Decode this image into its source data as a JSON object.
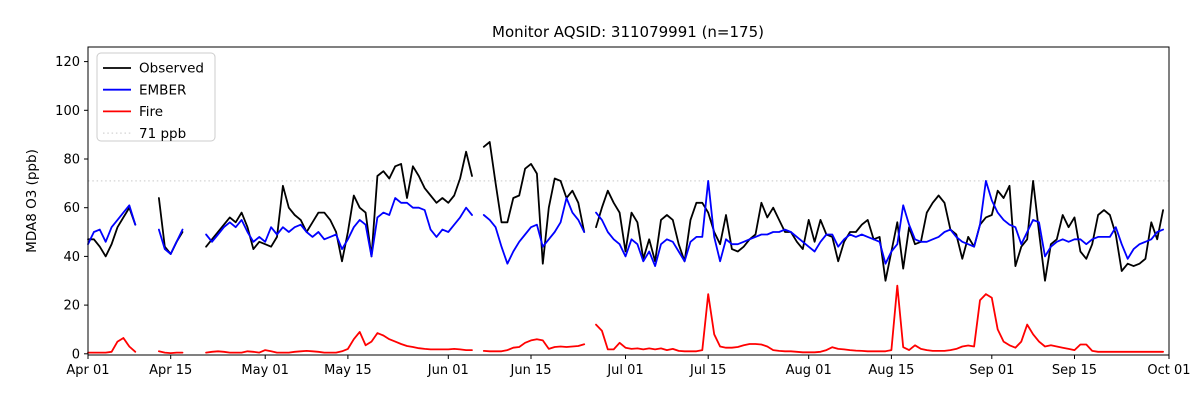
{
  "title": "Monitor AQSID: 311079991 (n=175)",
  "monitor_aqsid": "311079991",
  "n_obs": "175",
  "colors": {
    "observed": "#000000",
    "ember": "#0000ff",
    "fire": "#ff0000",
    "refline": "#d3d3d3",
    "spine": "#000000",
    "background": "#ffffff"
  },
  "legend": [
    {
      "label": "Observed",
      "color": "#000000",
      "style": "solid"
    },
    {
      "label": "EMBER",
      "color": "#0000ff",
      "style": "solid"
    },
    {
      "label": "Fire",
      "color": "#ff0000",
      "style": "solid"
    },
    {
      "label": "71 ppb",
      "color": "#d3d3d3",
      "style": "dotted"
    }
  ],
  "chart_data": {
    "type": "line",
    "title": "Monitor AQSID: 311079991 (n=175)",
    "xlabel": "",
    "ylabel": "MDA8 O3 (ppb)",
    "grid": false,
    "legend_position": "upper left",
    "ylim": [
      -0.5,
      126
    ],
    "y_ticks": [
      0,
      20,
      40,
      60,
      80,
      100,
      120
    ],
    "x_start": "Apr 01",
    "x_end": "Oct 01",
    "days_total": 183,
    "months": [
      {
        "name": "Apr",
        "days": 30
      },
      {
        "name": "May",
        "days": 31
      },
      {
        "name": "Jun",
        "days": 30
      },
      {
        "name": "Jul",
        "days": 31
      },
      {
        "name": "Aug",
        "days": 31
      },
      {
        "name": "Sep",
        "days": 30
      }
    ],
    "x_ticks": [
      {
        "label": "Apr 01",
        "day": 0
      },
      {
        "label": "Apr 15",
        "day": 14
      },
      {
        "label": "May 01",
        "day": 30
      },
      {
        "label": "May 15",
        "day": 44
      },
      {
        "label": "Jun 01",
        "day": 61
      },
      {
        "label": "Jun 15",
        "day": 75
      },
      {
        "label": "Jul 01",
        "day": 91
      },
      {
        "label": "Jul 15",
        "day": 105
      },
      {
        "label": "Aug 01",
        "day": 122
      },
      {
        "label": "Aug 15",
        "day": 136
      },
      {
        "label": "Sep 01",
        "day": 153
      },
      {
        "label": "Sep 15",
        "day": 167
      },
      {
        "label": "Oct 01",
        "day": 183
      }
    ],
    "refline": {
      "value": 71,
      "label": "71 ppb",
      "color": "#d3d3d3",
      "style": "dotted"
    },
    "series": [
      {
        "name": "Observed",
        "color": "#000000",
        "linestyle": "solid",
        "values": [
          47,
          47,
          44,
          40,
          45,
          52,
          56,
          60,
          53,
          null,
          null,
          null,
          64,
          44,
          41,
          46,
          50,
          null,
          null,
          null,
          44,
          47,
          50,
          53,
          56,
          54,
          58,
          52,
          43,
          46,
          45,
          44,
          48,
          69,
          60,
          57,
          55,
          50,
          54,
          58,
          58,
          55,
          50,
          38,
          50,
          65,
          60,
          58,
          40,
          73,
          75,
          72,
          77,
          78,
          64,
          77,
          73,
          68,
          65,
          62,
          64,
          62,
          65,
          72,
          83,
          73,
          null,
          85,
          87,
          70,
          54,
          54,
          64,
          65,
          76,
          78,
          74,
          37,
          60,
          72,
          71,
          64,
          67,
          62,
          50,
          null,
          52,
          60,
          67,
          62,
          58,
          42,
          58,
          54,
          39,
          47,
          38,
          55,
          57,
          55,
          45,
          38,
          55,
          62,
          62,
          58,
          50,
          45,
          57,
          43,
          42,
          44,
          47,
          49,
          62,
          56,
          60,
          55,
          50,
          50,
          46,
          43,
          55,
          46,
          55,
          49,
          48,
          38,
          46,
          50,
          50,
          53,
          55,
          47,
          48,
          30,
          42,
          54,
          35,
          52,
          45,
          46,
          58,
          62,
          65,
          62,
          51,
          49,
          39,
          48,
          44,
          53,
          56,
          57,
          67,
          64,
          69,
          36,
          44,
          47,
          71,
          50,
          30,
          45,
          47,
          57,
          52,
          56,
          42,
          39,
          45,
          57,
          59,
          57,
          49,
          34,
          37,
          36,
          37,
          39,
          54,
          47,
          59
        ]
      },
      {
        "name": "EMBER",
        "color": "#0000ff",
        "linestyle": "solid",
        "values": [
          45,
          50,
          51,
          46,
          52,
          55,
          58,
          61,
          53,
          null,
          null,
          null,
          51,
          43,
          41,
          46,
          51,
          null,
          null,
          null,
          49,
          46,
          49,
          52,
          54,
          52,
          55,
          50,
          46,
          48,
          46,
          52,
          49,
          52,
          50,
          52,
          53,
          50,
          48,
          50,
          47,
          48,
          49,
          43,
          47,
          52,
          55,
          53,
          40,
          56,
          58,
          57,
          64,
          62,
          62,
          60,
          60,
          59,
          51,
          48,
          51,
          50,
          53,
          56,
          60,
          57,
          null,
          57,
          55,
          52,
          44,
          37,
          42,
          46,
          49,
          52,
          53,
          44,
          47,
          50,
          54,
          64,
          58,
          55,
          50,
          null,
          58,
          55,
          50,
          47,
          45,
          40,
          47,
          45,
          38,
          42,
          36,
          45,
          47,
          46,
          42,
          38,
          46,
          48,
          48,
          71,
          48,
          38,
          47,
          45,
          45,
          46,
          47,
          48,
          49,
          49,
          50,
          50,
          51,
          50,
          48,
          46,
          44,
          42,
          46,
          49,
          49,
          44,
          47,
          49,
          48,
          49,
          48,
          47,
          46,
          37,
          42,
          45,
          61,
          53,
          47,
          46,
          46,
          47,
          48,
          50,
          51,
          48,
          46,
          45,
          44,
          53,
          71,
          63,
          58,
          55,
          53,
          52,
          45,
          50,
          55,
          54,
          40,
          44,
          46,
          47,
          46,
          47,
          47,
          45,
          47,
          48,
          48,
          48,
          52,
          45,
          39,
          43,
          45,
          46,
          47,
          50,
          51
        ]
      },
      {
        "name": "Fire",
        "color": "#ff0000",
        "linestyle": "solid",
        "values": [
          0.5,
          0.5,
          0.5,
          0.5,
          0.8,
          5,
          6.5,
          3,
          0.8,
          null,
          null,
          null,
          1,
          0.5,
          0.3,
          0.5,
          0.5,
          null,
          null,
          null,
          0.5,
          0.8,
          1,
          0.8,
          0.5,
          0.5,
          0.5,
          1,
          0.8,
          0.5,
          1.5,
          1,
          0.5,
          0.5,
          0.5,
          0.8,
          1,
          1.2,
          1,
          0.8,
          0.5,
          0.5,
          0.5,
          1,
          2,
          6,
          9,
          3.5,
          5,
          8.5,
          7.5,
          6,
          5,
          4,
          3.2,
          2.8,
          2.3,
          2,
          1.8,
          1.8,
          1.8,
          1.8,
          2,
          1.8,
          1.5,
          1.5,
          null,
          1.2,
          1,
          1,
          1,
          1.5,
          2.5,
          2.8,
          4.5,
          5.5,
          6,
          5.5,
          2,
          2.8,
          3,
          2.8,
          3,
          3.2,
          3.9,
          null,
          12,
          9.5,
          1.8,
          1.8,
          4.5,
          2.5,
          2,
          2.2,
          1.8,
          2.2,
          1.8,
          2.2,
          1.5,
          2,
          1.2,
          1,
          1,
          1,
          1.5,
          24.5,
          8,
          3,
          2.5,
          2.5,
          2.8,
          3.5,
          4,
          4,
          3.8,
          3,
          1.5,
          1.2,
          1,
          1,
          0.8,
          0.6,
          0.6,
          0.6,
          0.8,
          1.5,
          2.7,
          2,
          1.8,
          1.5,
          1.3,
          1.2,
          1,
          1,
          1,
          1,
          1.5,
          28,
          2.7,
          1.5,
          3.5,
          2,
          1.5,
          1.2,
          1.2,
          1.2,
          1.5,
          2,
          3,
          3.4,
          3,
          22,
          24.5,
          23,
          10,
          5,
          3.5,
          2.5,
          5,
          12,
          8,
          5,
          3,
          3.5,
          3,
          2.5,
          2,
          1.5,
          3.8,
          3.8,
          1.2,
          0.8,
          0.8,
          0.8,
          0.8,
          0.8,
          0.8,
          0.8,
          0.8,
          0.8,
          0.8,
          0.8,
          0.8
        ]
      }
    ]
  }
}
